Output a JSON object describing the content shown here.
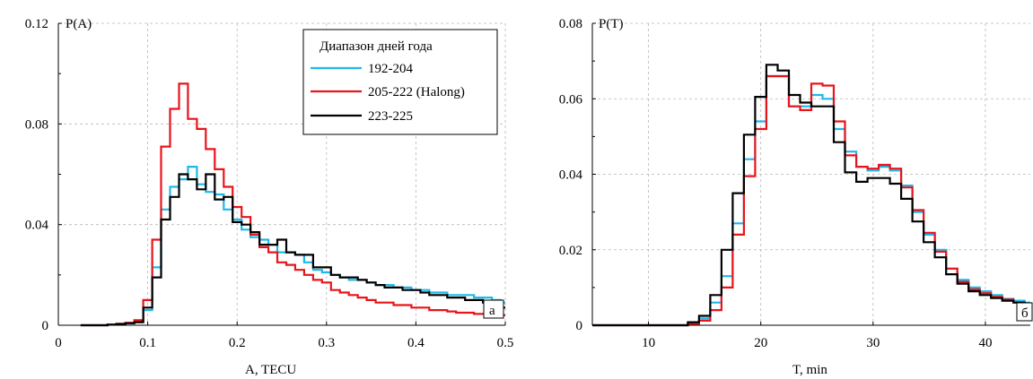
{
  "charts": [
    {
      "id": "a",
      "panel_label": "а",
      "ylabel_inline": "P(A)",
      "xlabel": "A, TECU",
      "xticks": [
        0,
        0.1,
        0.2,
        0.3,
        0.4,
        0.5
      ],
      "xtick_labels": [
        "0",
        "0.1",
        "0.2",
        "0.3",
        "0.4",
        "0.5"
      ],
      "yticks": [
        0,
        0.04,
        0.08,
        0.12
      ],
      "ytick_labels": [
        "0",
        "0.04",
        "0.08",
        "0.12"
      ]
    },
    {
      "id": "b",
      "panel_label": "б",
      "ylabel_inline": "P(T)",
      "xlabel": "T, min",
      "xticks": [
        10,
        20,
        30,
        40
      ],
      "xtick_labels": [
        "10",
        "20",
        "30",
        "40"
      ],
      "yticks": [
        0,
        0.02,
        0.04,
        0.06,
        0.08
      ],
      "ytick_labels": [
        "0",
        "0.02",
        "0.04",
        "0.06",
        "0.08"
      ]
    }
  ],
  "legend": {
    "title": "Диапазон дней года",
    "entries": [
      {
        "label": "192-204",
        "color": "#1fb8e8"
      },
      {
        "label": "205-222 (Halong)",
        "color": "#e8141b"
      },
      {
        "label": "223-225",
        "color": "#000000"
      }
    ]
  },
  "chart_data": [
    {
      "type": "line",
      "title": "",
      "xlabel": "A, TECU",
      "ylabel": "P(A)",
      "xlim": [
        0,
        0.5
      ],
      "ylim": [
        0,
        0.12
      ],
      "step": true,
      "grid": true,
      "legend_position": "top-right",
      "x": [
        0.03,
        0.04,
        0.05,
        0.06,
        0.07,
        0.08,
        0.09,
        0.1,
        0.11,
        0.12,
        0.13,
        0.14,
        0.15,
        0.16,
        0.17,
        0.18,
        0.19,
        0.2,
        0.21,
        0.22,
        0.23,
        0.24,
        0.25,
        0.26,
        0.27,
        0.28,
        0.29,
        0.3,
        0.31,
        0.32,
        0.33,
        0.34,
        0.35,
        0.36,
        0.37,
        0.38,
        0.39,
        0.4,
        0.41,
        0.42,
        0.43,
        0.44,
        0.45,
        0.46,
        0.47,
        0.48,
        0.49,
        0.5
      ],
      "series": [
        {
          "name": "192-204",
          "color": "#1fb8e8",
          "values": [
            0,
            0,
            0,
            0.0003,
            0.0005,
            0.0008,
            0.0015,
            0.006,
            0.023,
            0.046,
            0.055,
            0.058,
            0.063,
            0.056,
            0.053,
            0.052,
            0.046,
            0.042,
            0.038,
            0.035,
            0.034,
            0.032,
            0.029,
            0.029,
            0.028,
            0.025,
            0.022,
            0.021,
            0.02,
            0.019,
            0.018,
            0.018,
            0.017,
            0.016,
            0.016,
            0.015,
            0.015,
            0.014,
            0.014,
            0.013,
            0.013,
            0.012,
            0.012,
            0.012,
            0.011,
            0.011,
            0.01,
            0.009
          ]
        },
        {
          "name": "205-222 (Halong)",
          "color": "#e8141b",
          "values": [
            0,
            0,
            0,
            0.0002,
            0.0006,
            0.001,
            0.002,
            0.01,
            0.034,
            0.071,
            0.086,
            0.096,
            0.082,
            0.078,
            0.07,
            0.062,
            0.055,
            0.047,
            0.043,
            0.036,
            0.031,
            0.029,
            0.025,
            0.024,
            0.022,
            0.02,
            0.018,
            0.017,
            0.014,
            0.013,
            0.012,
            0.011,
            0.01,
            0.009,
            0.009,
            0.008,
            0.008,
            0.007,
            0.007,
            0.006,
            0.006,
            0.0055,
            0.005,
            0.005,
            0.0045,
            0.0045,
            0.004,
            0.004
          ]
        },
        {
          "name": "223-225",
          "color": "#000000",
          "values": [
            0,
            0,
            0,
            0.0002,
            0.0005,
            0.0008,
            0.0012,
            0.007,
            0.019,
            0.042,
            0.051,
            0.06,
            0.058,
            0.054,
            0.06,
            0.05,
            0.051,
            0.041,
            0.04,
            0.037,
            0.032,
            0.032,
            0.034,
            0.029,
            0.028,
            0.028,
            0.023,
            0.023,
            0.02,
            0.019,
            0.019,
            0.018,
            0.017,
            0.016,
            0.015,
            0.015,
            0.014,
            0.014,
            0.013,
            0.012,
            0.012,
            0.011,
            0.011,
            0.01,
            0.01,
            0.009,
            0.008,
            0.007
          ]
        }
      ]
    },
    {
      "type": "line",
      "title": "",
      "xlabel": "T, min",
      "ylabel": "P(T)",
      "xlim": [
        5,
        44
      ],
      "ylim": [
        0,
        0.08
      ],
      "step": true,
      "grid": true,
      "x": [
        5,
        6,
        7,
        8,
        9,
        10,
        11,
        12,
        13,
        14,
        15,
        16,
        17,
        18,
        19,
        20,
        21,
        22,
        23,
        24,
        25,
        26,
        27,
        28,
        29,
        30,
        31,
        32,
        33,
        34,
        35,
        36,
        37,
        38,
        39,
        40,
        41,
        42,
        43,
        44
      ],
      "series": [
        {
          "name": "192-204",
          "color": "#1fb8e8",
          "values": [
            0,
            0,
            0,
            0,
            0,
            0,
            0,
            0,
            0,
            0.0004,
            0.0018,
            0.006,
            0.013,
            0.027,
            0.044,
            0.054,
            0.066,
            0.066,
            0.058,
            0.058,
            0.061,
            0.06,
            0.052,
            0.046,
            0.042,
            0.041,
            0.042,
            0.041,
            0.037,
            0.03,
            0.024,
            0.02,
            0.015,
            0.012,
            0.01,
            0.009,
            0.008,
            0.007,
            0.0065,
            0.006
          ]
        },
        {
          "name": "205-222 (Halong)",
          "color": "#e8141b",
          "values": [
            0,
            0,
            0,
            0,
            0,
            0,
            0,
            0,
            0,
            0.0003,
            0.0012,
            0.004,
            0.01,
            0.024,
            0.0395,
            0.052,
            0.066,
            0.066,
            0.058,
            0.057,
            0.064,
            0.0635,
            0.054,
            0.045,
            0.042,
            0.0415,
            0.0425,
            0.0415,
            0.0365,
            0.0305,
            0.0245,
            0.0195,
            0.015,
            0.0115,
            0.0095,
            0.0085,
            0.0075,
            0.0068,
            0.006,
            0.0055
          ]
        },
        {
          "name": "223-225",
          "color": "#000000",
          "values": [
            0,
            0,
            0,
            0,
            0,
            0,
            0,
            0,
            0,
            0.0008,
            0.0025,
            0.008,
            0.02,
            0.035,
            0.0505,
            0.0605,
            0.069,
            0.0675,
            0.061,
            0.059,
            0.058,
            0.058,
            0.0485,
            0.0405,
            0.038,
            0.039,
            0.039,
            0.0375,
            0.0335,
            0.0275,
            0.022,
            0.018,
            0.0135,
            0.011,
            0.009,
            0.008,
            0.0072,
            0.0065,
            0.006,
            0.0055
          ]
        }
      ]
    }
  ]
}
